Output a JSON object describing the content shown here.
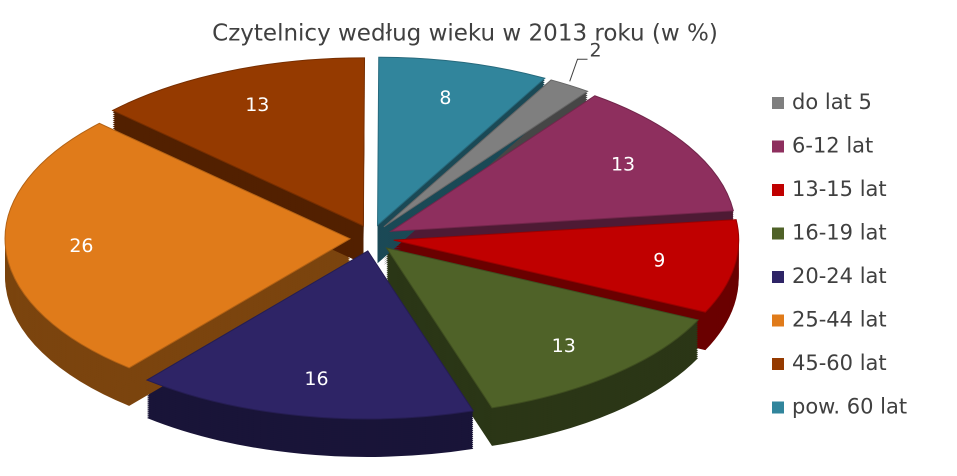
{
  "chart_data": {
    "type": "pie",
    "title": "Czytelnicy według wieku w 2013 roku (w %)",
    "categories": [
      "do lat 5",
      "6-12 lat",
      "13-15 lat",
      "16-19 lat",
      "20-24 lat",
      "25-44 lat",
      "45-60 lat",
      "pow. 60 lat"
    ],
    "values": [
      2,
      13,
      9,
      13,
      16,
      26,
      13,
      8
    ],
    "colors": [
      "#7f7f7f",
      "#8e2f5e",
      "#c00000",
      "#4f6228",
      "#2e2466",
      "#e07b1a",
      "#953a00",
      "#31859c"
    ],
    "legend": "right"
  }
}
